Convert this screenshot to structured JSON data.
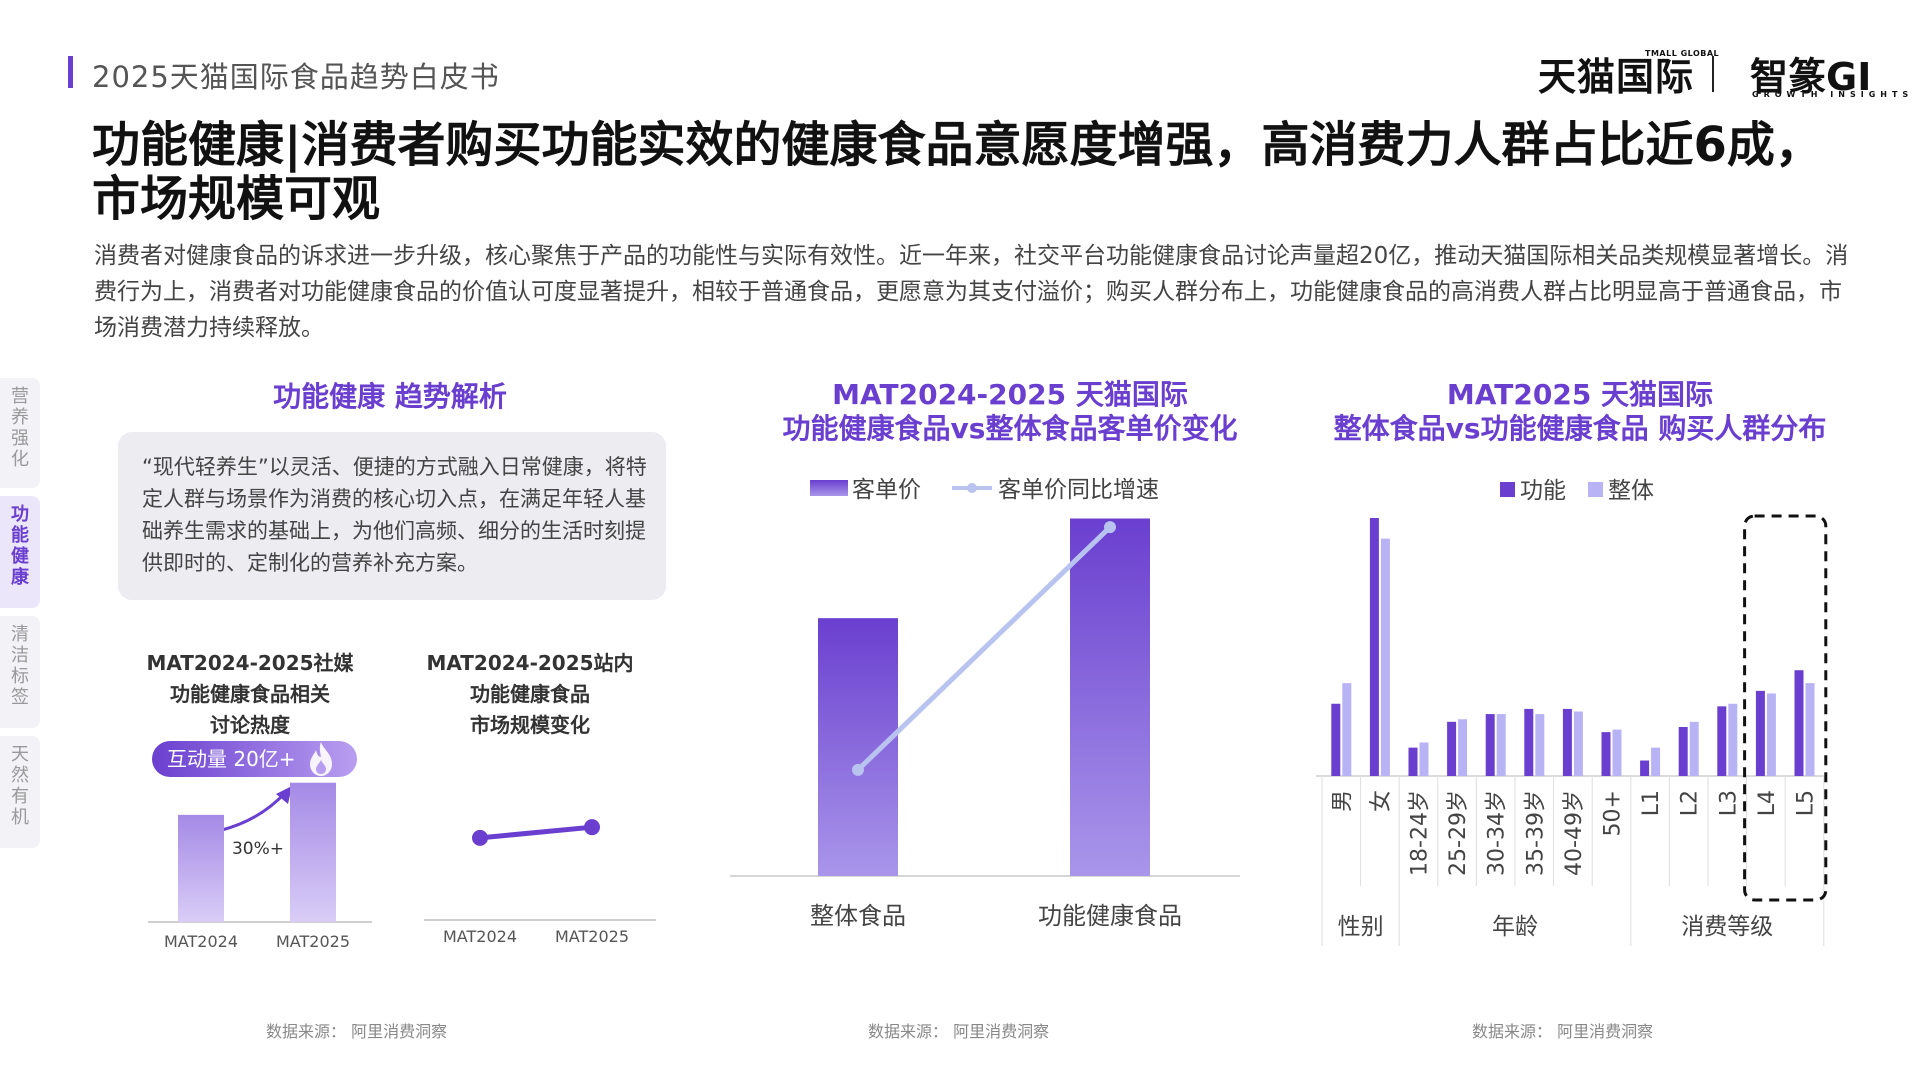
{
  "header": {
    "report_title": "2025天猫国际食品趋势白皮书",
    "logo_tmall": "天猫国际",
    "logo_tmall_sub": "TMALL GLOBAL",
    "logo_gi": "智篆GI",
    "logo_gi_sub": "GROWTH INSIGHTS"
  },
  "title": "功能健康|消费者购买功能实效的健康食品意愿度增强，高消费力人群占比近6成，市场规模可观",
  "description": "消费者对健康食品的诉求进一步升级，核心聚焦于产品的功能性与实际有效性。近一年来，社交平台功能健康食品讨论声量超20亿，推动天猫国际相关品类规模显著增长。消费行为上，消费者对功能健康食品的价值认可度显著提升，相较于普通食品，更愿意为其支付溢价；购买人群分布上，功能健康食品的高消费人群占比明显高于普通食品，市场消费潜力持续释放。",
  "side_tabs": [
    {
      "label": "营养强化",
      "active": false
    },
    {
      "label": "功能健康",
      "active": true
    },
    {
      "label": "清洁标签",
      "active": false
    },
    {
      "label": "天然有机",
      "active": false
    }
  ],
  "left_panel": {
    "title": "功能健康 趋势解析",
    "box_text": "“现代轻养生”以灵活、便捷的方式融入日常健康，将特定人群与场景作为消费的核心切入点，在满足年轻人基础养生需求的基础上，为他们高频、细分的生活时刻提供即时的、定制化的营养补充方案。",
    "social_title": [
      "MAT2024-2025社媒",
      "功能健康食品相关",
      "讨论热度"
    ],
    "pill_text": "互动量 20亿+",
    "growth_label": "30%+",
    "site_title": [
      "MAT2024-2025站内",
      "功能健康食品",
      "市场规模变化"
    ],
    "source": "数据来源： 阿里消费洞察"
  },
  "middle_panel": {
    "title": [
      "MAT2024-2025 天猫国际",
      "功能健康食品vs整体食品客单价变化"
    ],
    "source": "数据来源： 阿里消费洞察"
  },
  "right_panel": {
    "title": [
      "MAT2025 天猫国际",
      "整体食品vs功能健康食品 购买人群分布"
    ],
    "source": "数据来源： 阿里消费洞察"
  },
  "colors": {
    "accent": "#6a3fcf",
    "func_bar": "#6a3fcf",
    "total_bar": "#b8b3f4",
    "line": "#b9c3f0"
  },
  "chart_data": [
    {
      "id": "social-heat",
      "type": "bar",
      "categories": [
        "MAT2024",
        "MAT2025"
      ],
      "values": [
        100,
        130
      ],
      "ylim": [
        0,
        140
      ]
    },
    {
      "id": "site-market",
      "type": "line",
      "categories": [
        "MAT2024",
        "MAT2025"
      ],
      "values": [
        100,
        113
      ],
      "ylim": [
        0,
        140
      ]
    },
    {
      "id": "price",
      "type": "bar",
      "categories": [
        "整体食品",
        "功能健康食品"
      ],
      "series": [
        {
          "name": "客单价",
          "type": "bar",
          "values": [
            238,
            330
          ]
        },
        {
          "name": "客单价同比增速",
          "type": "line",
          "values": [
            98,
            322
          ]
        }
      ],
      "ylim": [
        0,
        360
      ]
    },
    {
      "id": "buyers",
      "type": "bar",
      "categories": [
        "男",
        "女",
        "18-24岁",
        "25-29岁",
        "30-34岁",
        "35-39岁",
        "40-49岁",
        "50+",
        "L1",
        "L2",
        "L3",
        "L4",
        "L5"
      ],
      "groups": [
        {
          "label": "性别",
          "start": 0,
          "end": 1
        },
        {
          "label": "年龄",
          "start": 2,
          "end": 7
        },
        {
          "label": "消费等级",
          "start": 8,
          "end": 12
        }
      ],
      "series": [
        {
          "name": "功能",
          "values": [
            28,
            100,
            11,
            21,
            24,
            26,
            26,
            17,
            6,
            19,
            27,
            33,
            41
          ]
        },
        {
          "name": "整体",
          "values": [
            36,
            92,
            13,
            22,
            24,
            24,
            25,
            18,
            11,
            21,
            28,
            32,
            36
          ]
        }
      ],
      "ylim": [
        0,
        100
      ],
      "highlight": [
        "L4",
        "L5"
      ]
    }
  ]
}
